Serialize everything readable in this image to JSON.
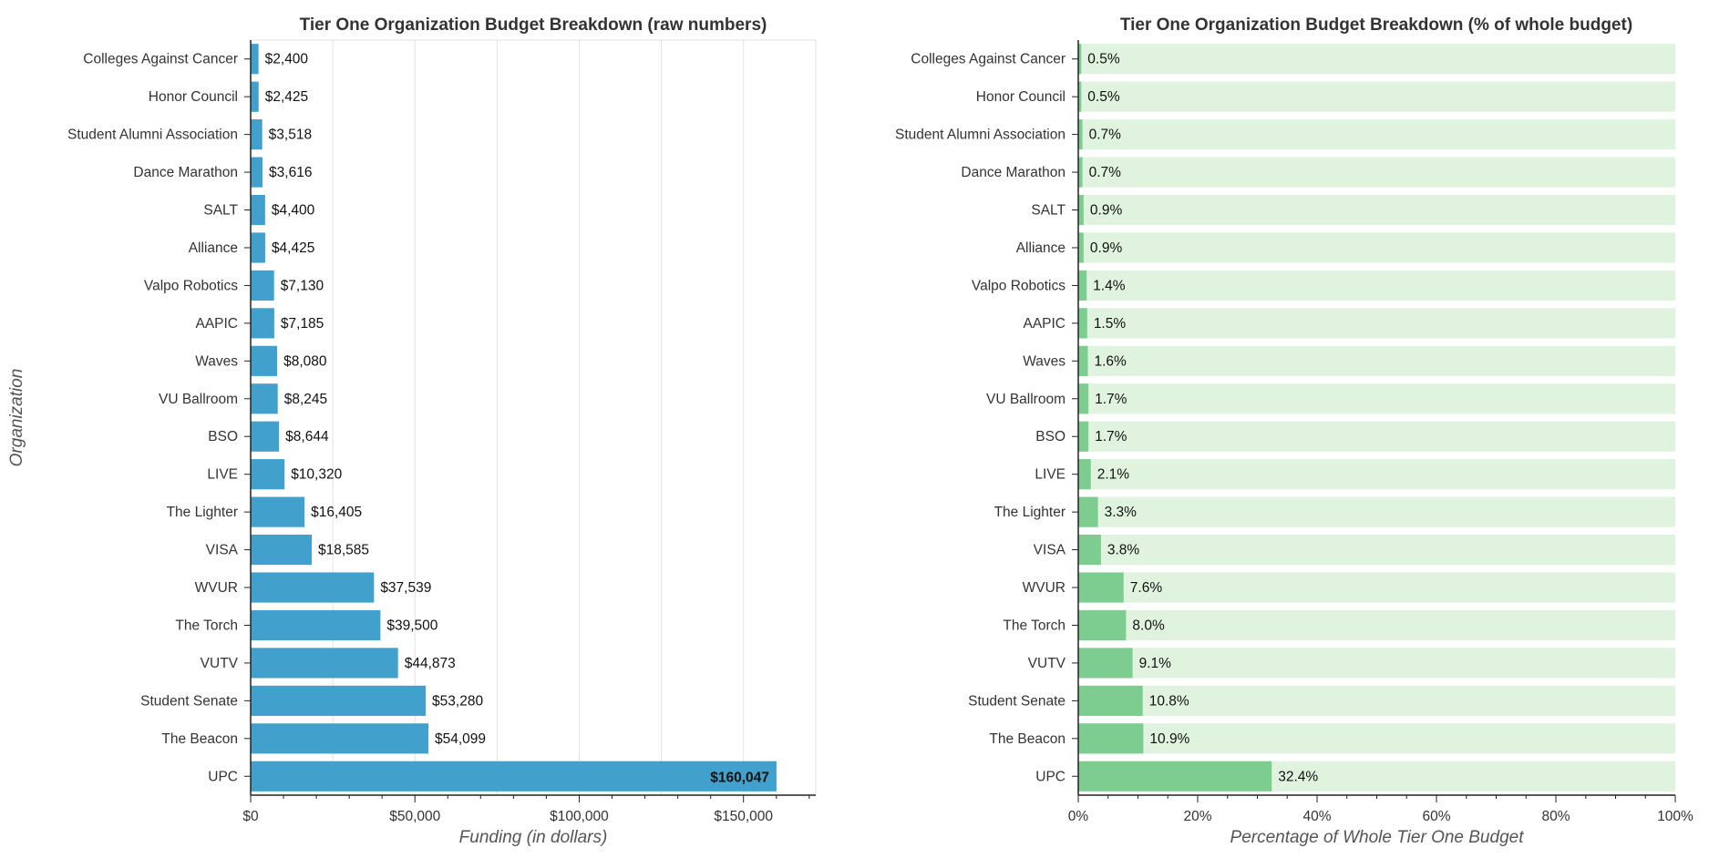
{
  "chart_data": [
    {
      "type": "bar",
      "orientation": "horizontal",
      "title": "Tier One Organization Budget Breakdown (raw numbers)",
      "xlabel": "Funding (in dollars)",
      "ylabel": "Organization",
      "categories": [
        "Colleges Against Cancer",
        "Honor Council",
        "Student Alumni Association",
        "Dance Marathon",
        "SALT",
        "Alliance",
        "Valpo Robotics",
        "AAPIC",
        "Waves",
        "VU Ballroom",
        "BSO",
        "LIVE",
        "The Lighter",
        "VISA",
        "WVUR",
        "The Torch",
        "VUTV",
        "Student Senate",
        "The Beacon",
        "UPC"
      ],
      "values": [
        2400,
        2425,
        3518,
        3616,
        4400,
        4425,
        7130,
        7185,
        8080,
        8245,
        8644,
        10320,
        16405,
        18585,
        37539,
        39500,
        44873,
        53280,
        54099,
        160047
      ],
      "labels": [
        "$2,400",
        "$2,425",
        "$3,518",
        "$3,616",
        "$4,400",
        "$4,425",
        "$7,130",
        "$7,185",
        "$8,080",
        "$8,245",
        "$8,644",
        "$10,320",
        "$16,405",
        "$18,585",
        "$37,539",
        "$39,500",
        "$44,873",
        "$53,280",
        "$54,099",
        "$160,047"
      ],
      "xlim": [
        0,
        172000
      ],
      "xticks": [
        0,
        50000,
        100000,
        150000
      ],
      "xtick_labels": [
        "$0",
        "$50,000",
        "$100,000",
        "$150,000"
      ],
      "grid": true,
      "bar_color": "#42a0cc"
    },
    {
      "type": "bar",
      "orientation": "horizontal",
      "title": "Tier One Organization Budget Breakdown (% of whole budget)",
      "xlabel": "Percentage of Whole Tier One Budget",
      "ylabel": "",
      "categories": [
        "Colleges Against Cancer",
        "Honor Council",
        "Student Alumni Association",
        "Dance Marathon",
        "SALT",
        "Alliance",
        "Valpo Robotics",
        "AAPIC",
        "Waves",
        "VU Ballroom",
        "BSO",
        "LIVE",
        "The Lighter",
        "VISA",
        "WVUR",
        "The Torch",
        "VUTV",
        "Student Senate",
        "The Beacon",
        "UPC"
      ],
      "values": [
        0.5,
        0.5,
        0.7,
        0.7,
        0.9,
        0.9,
        1.4,
        1.5,
        1.6,
        1.7,
        1.7,
        2.1,
        3.3,
        3.8,
        7.6,
        8.0,
        9.1,
        10.8,
        10.9,
        32.4
      ],
      "labels": [
        "0.5%",
        "0.5%",
        "0.7%",
        "0.7%",
        "0.9%",
        "0.9%",
        "1.4%",
        "1.5%",
        "1.6%",
        "1.7%",
        "1.7%",
        "2.1%",
        "3.3%",
        "3.8%",
        "7.6%",
        "8.0%",
        "9.1%",
        "10.8%",
        "10.9%",
        "32.4%"
      ],
      "xlim": [
        0,
        100
      ],
      "xticks": [
        0,
        20,
        40,
        60,
        80,
        100
      ],
      "xtick_labels": [
        "0%",
        "20%",
        "40%",
        "60%",
        "80%",
        "100%"
      ],
      "grid": false,
      "bar_color": "#7dcd91",
      "background_bar_color": "#e0f3de"
    }
  ]
}
